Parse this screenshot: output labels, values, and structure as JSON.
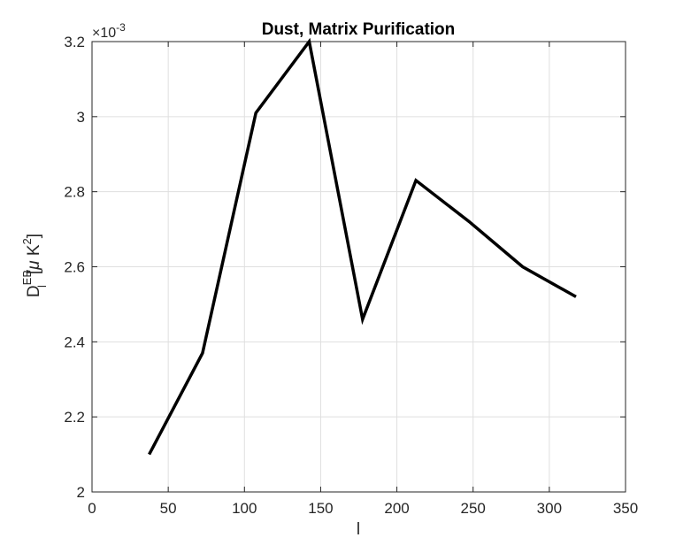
{
  "chart_data": {
    "type": "line",
    "title": "Dust, Matrix Purification",
    "xlabel": "l",
    "ylabel": {
      "base": "D",
      "sub": "l",
      "sup": "EB",
      "unit_open": "[",
      "unit_mu": "μ",
      "unit_k": " K",
      "unit_sup": "2",
      "unit_close": "]"
    },
    "y_exponent": {
      "prefix": "×10",
      "power": "-3"
    },
    "xlim": [
      0,
      350
    ],
    "ylim": [
      0.002,
      0.0032
    ],
    "xticks": [
      0,
      50,
      100,
      150,
      200,
      250,
      300,
      350
    ],
    "xtick_labels": [
      "0",
      "50",
      "100",
      "150",
      "200",
      "250",
      "300",
      "350"
    ],
    "yticks": [
      0.002,
      0.0022,
      0.0024,
      0.0026,
      0.0028,
      0.003,
      0.0032
    ],
    "ytick_labels": [
      "2",
      "2.2",
      "2.4",
      "2.6",
      "2.8",
      "3",
      "3.2"
    ],
    "grid": true,
    "series": [
      {
        "color": "#000000",
        "x": [
          37.5,
          72.5,
          107.5,
          142.5,
          177.5,
          212.5,
          247.5,
          282.5,
          317.5
        ],
        "y": [
          0.0021,
          0.00237,
          0.00301,
          0.0032,
          0.00246,
          0.00283,
          0.00272,
          0.0026,
          0.00252
        ]
      }
    ]
  }
}
